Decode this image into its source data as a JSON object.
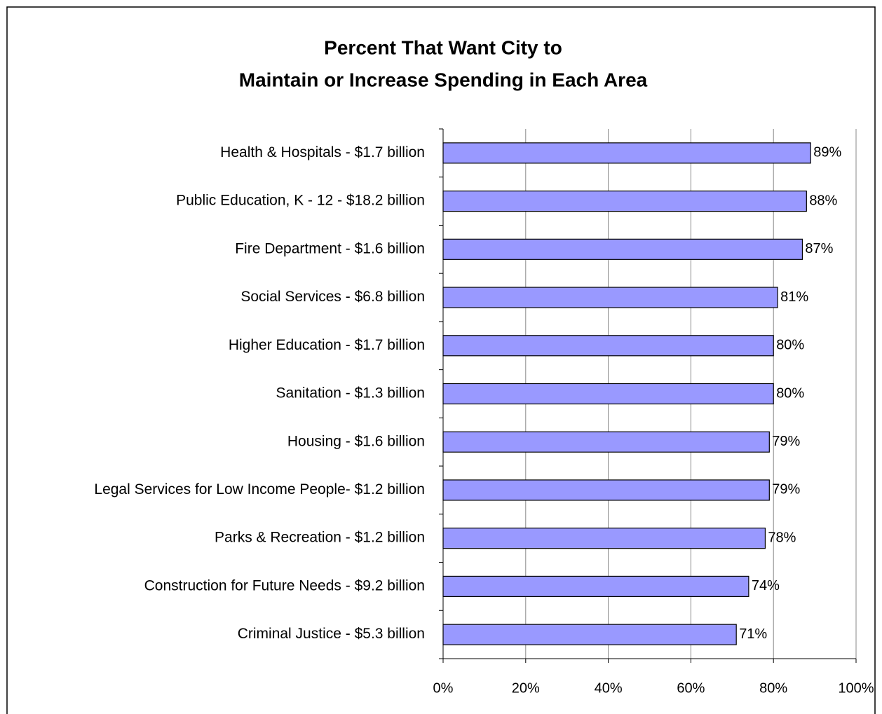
{
  "chart_data": {
    "type": "bar",
    "orientation": "horizontal",
    "title": [
      "Percent That Want City to",
      "Maintain or Increase Spending in Each Area"
    ],
    "categories": [
      "Health & Hospitals  - $1.7 billion",
      "Public Education, K - 12  - $18.2 billion",
      "Fire Department - $1.6 billion",
      "Social Services  - $6.8 billion",
      "Higher Education  - $1.7 billion",
      "Sanitation  - $1.3 billion",
      "Housing  - $1.6 billion",
      "Legal Services for Low Income People- $1.2 billion",
      "Parks & Recreation  - $1.2 billion",
      "Construction for Future Needs  - $9.2 billion",
      "Criminal Justice  - $5.3 billion"
    ],
    "values": [
      89,
      88,
      87,
      81,
      80,
      80,
      79,
      79,
      78,
      74,
      71
    ],
    "value_labels": [
      "89%",
      "88%",
      "87%",
      "81%",
      "80%",
      "80%",
      "79%",
      "79%",
      "78%",
      "74%",
      "71%"
    ],
    "color": "#9999ff",
    "xlim": [
      0,
      100
    ],
    "xticks": [
      {
        "value": 0,
        "label": "0%"
      },
      {
        "value": 20,
        "label": "20%"
      },
      {
        "value": 40,
        "label": "40%"
      },
      {
        "value": 60,
        "label": "60%"
      },
      {
        "value": 80,
        "label": "80%"
      },
      {
        "value": 100,
        "label": "100%"
      }
    ],
    "grid": true
  }
}
